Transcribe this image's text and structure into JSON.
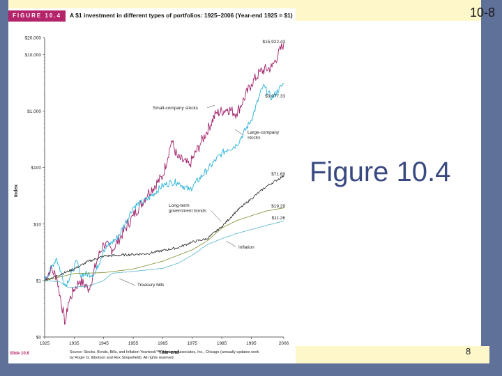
{
  "slide": {
    "number_label": "10-8",
    "title": "Figure 10.4",
    "page_number": "8"
  },
  "figure": {
    "badge": "FIGURE 10.4",
    "caption": "A $1 investment in different types of portfolios: 1925–2006 (Year-end 1925 = $1)",
    "slide_label": "Slide 10.8",
    "source_line1": "Source: Stocks, Bonds, Bills, and Inflation Yearbook™, Ibbotson Associates, Inc., Chicago (annually updates work",
    "source_line2": "by Roger G. Ibbotson and Rex Sinquefield). All rights reserved."
  },
  "chart_data": {
    "type": "line",
    "title": "A $1 investment in different types of portfolios: 1925–2006 (Year-end 1925 = $1)",
    "xlabel": "Year-end",
    "ylabel": "Index",
    "xlim": [
      1925,
      2006
    ],
    "x_ticks": [
      1925,
      1935,
      1945,
      1955,
      1965,
      1975,
      1985,
      1995,
      2006
    ],
    "y_scale": "log",
    "ylim": [
      0.1,
      20000
    ],
    "y_ticks": [
      {
        "value": 0.1,
        "label": "$0"
      },
      {
        "value": 1,
        "label": "$1"
      },
      {
        "value": 10,
        "label": "$10"
      },
      {
        "value": 100,
        "label": "$100"
      },
      {
        "value": 1000,
        "label": "$1,000"
      },
      {
        "value": 10000,
        "label": "$10,000"
      },
      {
        "value": 20000,
        "label": "$20,000"
      }
    ],
    "series": [
      {
        "name": "Small-company stocks",
        "color": "#a0206a",
        "end_label": "$15,922.43",
        "points": [
          [
            1925,
            1
          ],
          [
            1927,
            1.6
          ],
          [
            1929,
            1.2
          ],
          [
            1932,
            0.17
          ],
          [
            1933,
            0.4
          ],
          [
            1935,
            0.7
          ],
          [
            1937,
            1.0
          ],
          [
            1940,
            0.7
          ],
          [
            1943,
            2.5
          ],
          [
            1945,
            4.5
          ],
          [
            1948,
            3.5
          ],
          [
            1955,
            14
          ],
          [
            1960,
            35
          ],
          [
            1965,
            70
          ],
          [
            1968,
            300
          ],
          [
            1970,
            150
          ],
          [
            1974,
            110
          ],
          [
            1978,
            280
          ],
          [
            1983,
            900
          ],
          [
            1987,
            1100
          ],
          [
            1990,
            900
          ],
          [
            1995,
            3000
          ],
          [
            1998,
            5000
          ],
          [
            2002,
            6000
          ],
          [
            2006,
            15922.43
          ]
        ]
      },
      {
        "name": "Large-company stocks",
        "color": "#2bb2d8",
        "end_label": "$3,077.33",
        "points": [
          [
            1925,
            1
          ],
          [
            1929,
            2.5
          ],
          [
            1932,
            0.8
          ],
          [
            1936,
            2.2
          ],
          [
            1937,
            1.3
          ],
          [
            1942,
            1.3
          ],
          [
            1945,
            3.5
          ],
          [
            1950,
            6
          ],
          [
            1955,
            20
          ],
          [
            1960,
            28
          ],
          [
            1965,
            48
          ],
          [
            1968,
            55
          ],
          [
            1970,
            55
          ],
          [
            1974,
            40
          ],
          [
            1980,
            90
          ],
          [
            1985,
            180
          ],
          [
            1987,
            210
          ],
          [
            1990,
            250
          ],
          [
            1995,
            700
          ],
          [
            1999,
            2800
          ],
          [
            2002,
            1700
          ],
          [
            2006,
            3077.33
          ]
        ]
      },
      {
        "name": "Long-term government bonds",
        "color": "#222222",
        "end_label": "$71.69",
        "points": [
          [
            1925,
            1
          ],
          [
            1935,
            1.6
          ],
          [
            1940,
            2.2
          ],
          [
            1945,
            2.7
          ],
          [
            1950,
            2.8
          ],
          [
            1955,
            2.9
          ],
          [
            1960,
            3.0
          ],
          [
            1965,
            3.4
          ],
          [
            1970,
            3.8
          ],
          [
            1975,
            4.8
          ],
          [
            1980,
            5.5
          ],
          [
            1985,
            9
          ],
          [
            1990,
            17
          ],
          [
            1995,
            28
          ],
          [
            2000,
            46
          ],
          [
            2006,
            71.69
          ]
        ]
      },
      {
        "name": "Treasury bills",
        "color": "#7a8c2a",
        "end_label": "$19.29",
        "points": [
          [
            1925,
            1
          ],
          [
            1935,
            1.33
          ],
          [
            1945,
            1.38
          ],
          [
            1955,
            1.6
          ],
          [
            1965,
            2.2
          ],
          [
            1975,
            3.5
          ],
          [
            1980,
            5
          ],
          [
            1985,
            8.5
          ],
          [
            1990,
            11.5
          ],
          [
            1995,
            14
          ],
          [
            2000,
            17
          ],
          [
            2006,
            19.29
          ]
        ]
      },
      {
        "name": "Inflation",
        "color": "#55b7c9",
        "end_label": "$11.26",
        "points": [
          [
            1925,
            1
          ],
          [
            1930,
            0.95
          ],
          [
            1933,
            0.75
          ],
          [
            1940,
            0.8
          ],
          [
            1945,
            1.0
          ],
          [
            1948,
            1.35
          ],
          [
            1955,
            1.45
          ],
          [
            1965,
            1.65
          ],
          [
            1970,
            2.0
          ],
          [
            1975,
            2.8
          ],
          [
            1980,
            4.3
          ],
          [
            1985,
            5.5
          ],
          [
            1990,
            6.8
          ],
          [
            1995,
            8.0
          ],
          [
            2000,
            9.4
          ],
          [
            2006,
            11.26
          ]
        ]
      }
    ],
    "annotations": [
      {
        "text": "Small-company stocks",
        "series": "Small-company stocks"
      },
      {
        "text": "Large-company stocks",
        "series": "Large-company stocks"
      },
      {
        "text": "Long-term government bonds",
        "series": "Long-term government bonds"
      },
      {
        "text": "Inflation",
        "series": "Inflation"
      },
      {
        "text": "Treasury bills",
        "series": "Treasury bills"
      }
    ]
  }
}
